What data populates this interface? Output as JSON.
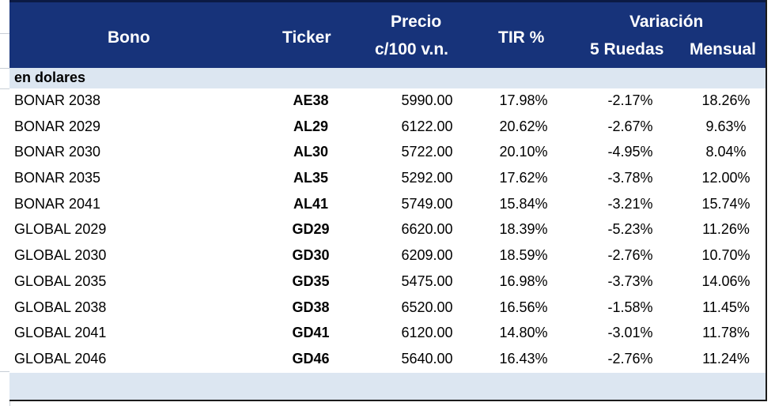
{
  "header": {
    "bono": "Bono",
    "ticker": "Ticker",
    "precio_line1": "Precio",
    "precio_line2": "c/100 v.n.",
    "tir": "TIR %",
    "variacion": "Variación",
    "ruedas": "5 Ruedas",
    "mensual": "Mensual"
  },
  "section_label": "en dolares",
  "rows": [
    {
      "bono": "BONAR 2038",
      "ticker": "AE38",
      "precio": "5990.00",
      "tir": "17.98%",
      "r5": "-2.17%",
      "mensual": "18.26%"
    },
    {
      "bono": "BONAR 2029",
      "ticker": "AL29",
      "precio": "6122.00",
      "tir": "20.62%",
      "r5": "-2.67%",
      "mensual": "9.63%"
    },
    {
      "bono": "BONAR 2030",
      "ticker": "AL30",
      "precio": "5722.00",
      "tir": "20.10%",
      "r5": "-4.95%",
      "mensual": "8.04%"
    },
    {
      "bono": "BONAR 2035",
      "ticker": "AL35",
      "precio": "5292.00",
      "tir": "17.62%",
      "r5": "-3.78%",
      "mensual": "12.00%"
    },
    {
      "bono": "BONAR 2041",
      "ticker": "AL41",
      "precio": "5749.00",
      "tir": "15.84%",
      "r5": "-3.21%",
      "mensual": "15.74%"
    },
    {
      "bono": "GLOBAL 2029",
      "ticker": "GD29",
      "precio": "6620.00",
      "tir": "18.39%",
      "r5": "-5.23%",
      "mensual": "11.26%"
    },
    {
      "bono": "GLOBAL 2030",
      "ticker": "GD30",
      "precio": "6209.00",
      "tir": "18.59%",
      "r5": "-2.76%",
      "mensual": "10.70%"
    },
    {
      "bono": "GLOBAL 2035",
      "ticker": "GD35",
      "precio": "5475.00",
      "tir": "16.98%",
      "r5": "-3.73%",
      "mensual": "14.06%"
    },
    {
      "bono": "GLOBAL 2038",
      "ticker": "GD38",
      "precio": "6520.00",
      "tir": "16.56%",
      "r5": "-1.58%",
      "mensual": "11.45%"
    },
    {
      "bono": "GLOBAL 2041",
      "ticker": "GD41",
      "precio": "6120.00",
      "tir": "14.80%",
      "r5": "-3.01%",
      "mensual": "11.78%"
    },
    {
      "bono": "GLOBAL 2046",
      "ticker": "GD46",
      "precio": "5640.00",
      "tir": "16.43%",
      "r5": "-2.76%",
      "mensual": "11.24%"
    }
  ]
}
